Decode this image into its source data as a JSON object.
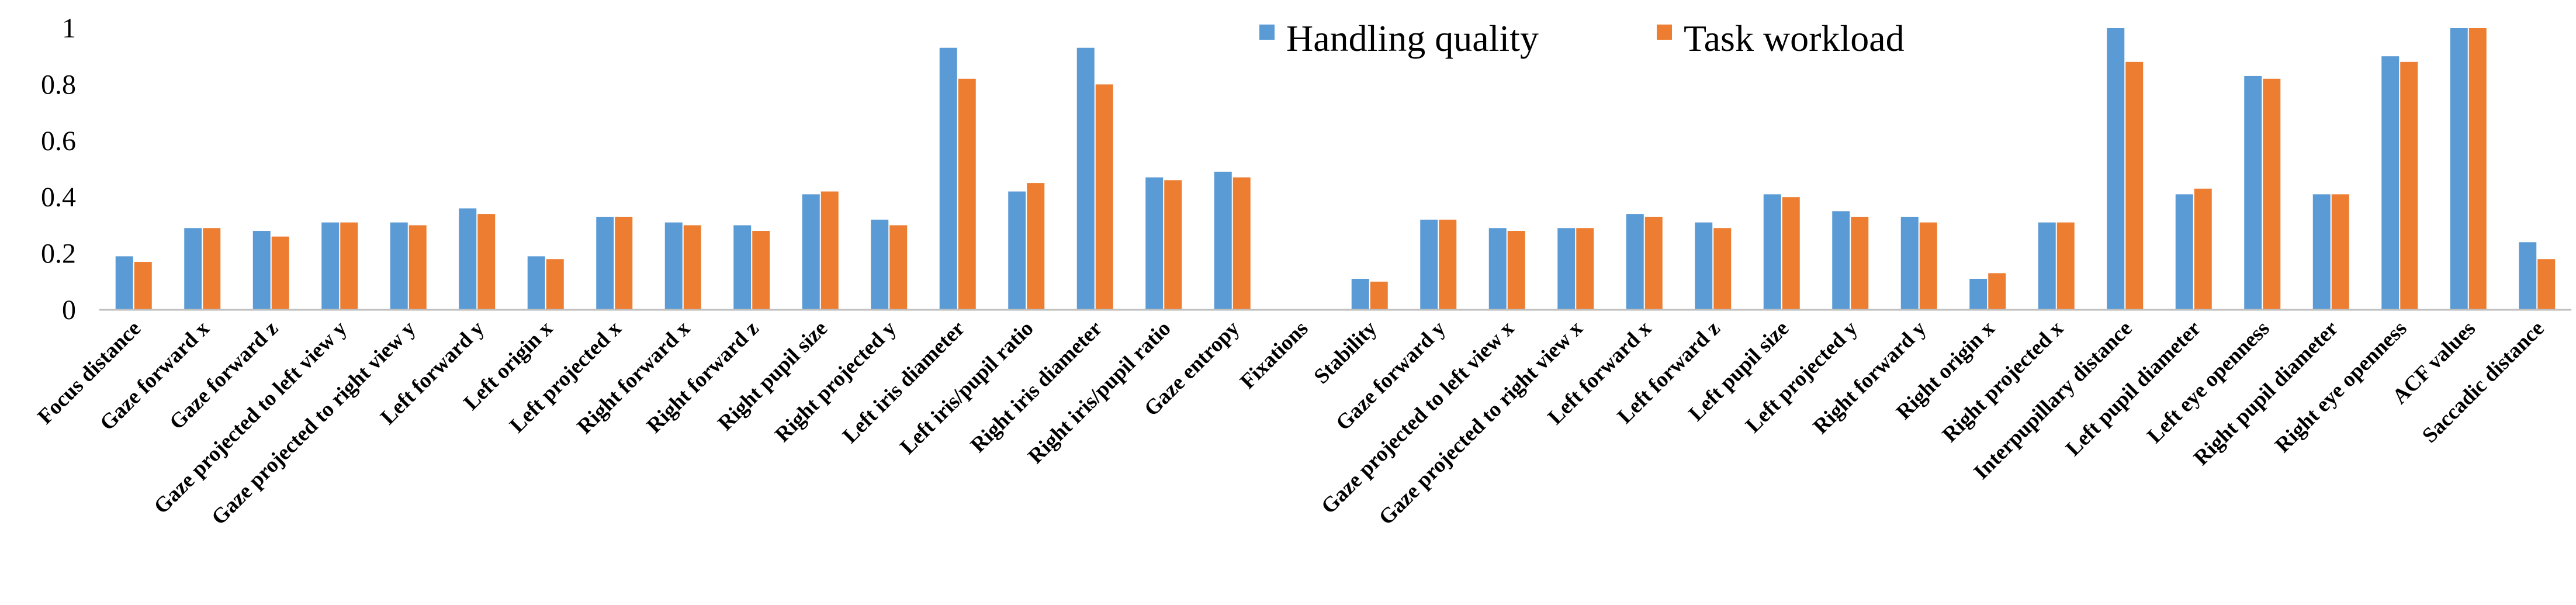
{
  "chart_data": {
    "type": "bar",
    "title": "",
    "xlabel": "",
    "ylabel": "",
    "ylim": [
      0,
      1
    ],
    "yticks": [
      "0",
      "0.2",
      "0.4",
      "0.6",
      "0.8",
      "1"
    ],
    "grid": false,
    "legend_position": "top-center",
    "categories": [
      "Focus distance",
      "Gaze forward x",
      "Gaze forward z",
      "Gaze projected to left view y",
      "Gaze projected to right view y",
      "Left forward y",
      "Left origin x",
      "Left projected x",
      "Right forward x",
      "Right forward z",
      "Right pupil size",
      "Right projected y",
      "Left iris diameter",
      "Left iris/pupil ratio",
      "Right iris diameter",
      "Right iris/pupil ratio",
      "Gaze entropy",
      "Fixations",
      "Stability",
      "Gaze forward y",
      "Gaze projected to left view x",
      "Gaze projected to right view x",
      "Left forward x",
      "Left forward z",
      "Left pupil size",
      "Left projected y",
      "Right forward y",
      "Right origin x",
      "Right projected x",
      "Interpupillary distance",
      "Left pupil diameter",
      "Left eye openness",
      "Right pupil diameter",
      "Right eye openness",
      "ACF values",
      "Saccadic distance"
    ],
    "series": [
      {
        "name": "Handling quality",
        "color": "#5b9bd5",
        "values": [
          0.19,
          0.29,
          0.28,
          0.31,
          0.31,
          0.36,
          0.19,
          0.33,
          0.31,
          0.3,
          0.41,
          0.32,
          0.93,
          0.42,
          0.93,
          0.47,
          0.49,
          0.0,
          0.11,
          0.32,
          0.29,
          0.29,
          0.34,
          0.31,
          0.41,
          0.35,
          0.33,
          0.11,
          0.31,
          1.0,
          0.41,
          0.83,
          0.41,
          0.9,
          1.0,
          0.24
        ]
      },
      {
        "name": "Task workload",
        "color": "#ed7d31",
        "values": [
          0.17,
          0.29,
          0.26,
          0.31,
          0.3,
          0.34,
          0.18,
          0.33,
          0.3,
          0.28,
          0.42,
          0.3,
          0.82,
          0.45,
          0.8,
          0.46,
          0.47,
          0.0,
          0.1,
          0.32,
          0.28,
          0.29,
          0.33,
          0.29,
          0.4,
          0.33,
          0.31,
          0.13,
          0.31,
          0.88,
          0.43,
          0.82,
          0.41,
          0.88,
          1.0,
          0.18
        ]
      }
    ]
  }
}
